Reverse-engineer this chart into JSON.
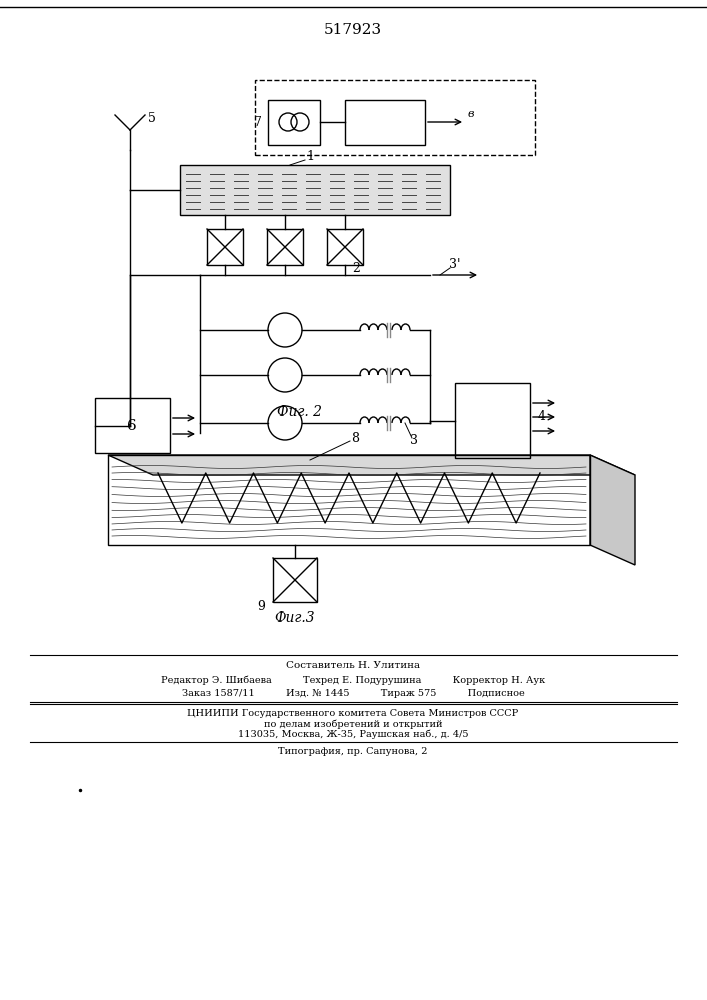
{
  "title": "517923",
  "fig2_label": "Фиг. 2",
  "fig3_label": "Фиг.3",
  "bg_color": "#ffffff",
  "line_color": "#000000",
  "footer_lines": [
    "Составитель Н. Улитина",
    "Редактор Э. Шибаева          Техред Е. Подурушина          Корректор Н. Аук",
    "Заказ 1587/11          Изд. № 1445          Тираж 575          Подписное",
    "ЦНИИПИ Государственного комитета Совета Министров СССР",
    "по делам изобретений и открытий",
    "113035, Москва, Ж-35, Раушская наб., д. 4/5",
    "Типография, пр. Сапунова, 2"
  ]
}
